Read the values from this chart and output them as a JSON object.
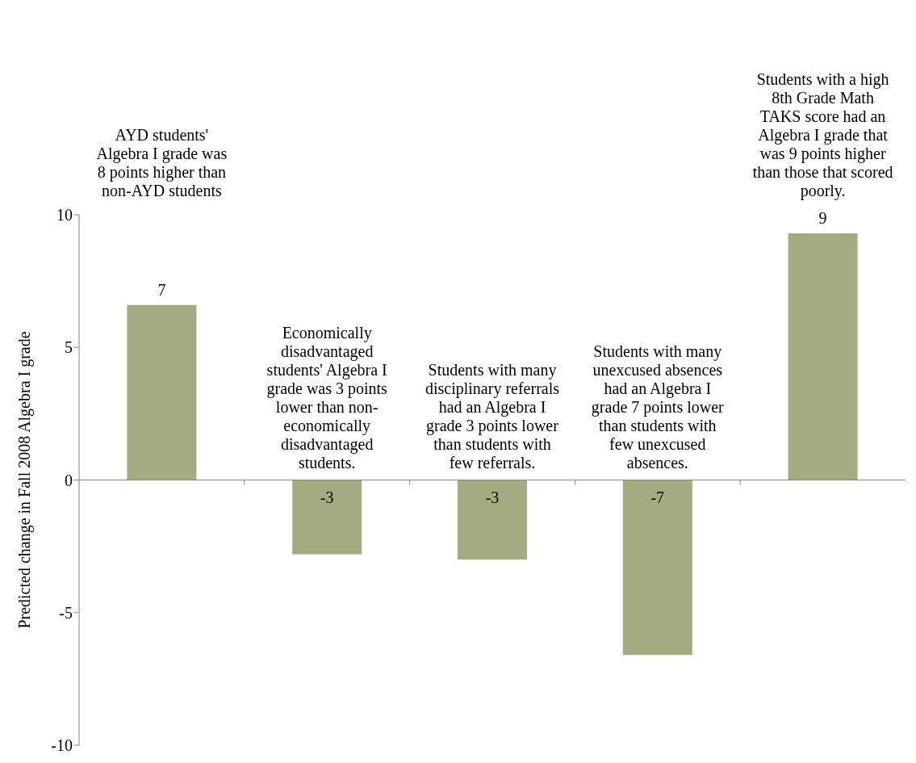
{
  "chart_data": {
    "type": "bar",
    "ylabel": "Predicted change in Fall 2008 Algebra I grade",
    "categories": [
      null,
      null,
      null,
      null,
      null
    ],
    "values": [
      6.6,
      -2.8,
      -3.0,
      -6.6,
      9.3
    ],
    "value_labels": [
      "7",
      "-3",
      "-3",
      "-7",
      "9"
    ],
    "color": "#a5ab80",
    "ylim": [
      -10,
      10
    ],
    "yticks": [
      -10,
      -5,
      0,
      5,
      10
    ],
    "legend": false,
    "annotations": [
      "AYD students' Algebra I grade was 8 points higher than non-AYD students",
      "Economically disadvantaged students' Algebra I grade was 3 points lower than non-economically disadvantaged students.",
      "Students with many disciplinary referrals had an Algebra I grade 3 points lower than students with few referrals.",
      "Students with many unexcused absences had an Algebra I grade 7 points lower than students with few unexcused absences.",
      "Students with a high 8th Grade Math TAKS score had an Algebra I grade that was 9 points higher than those that scored poorly."
    ]
  }
}
